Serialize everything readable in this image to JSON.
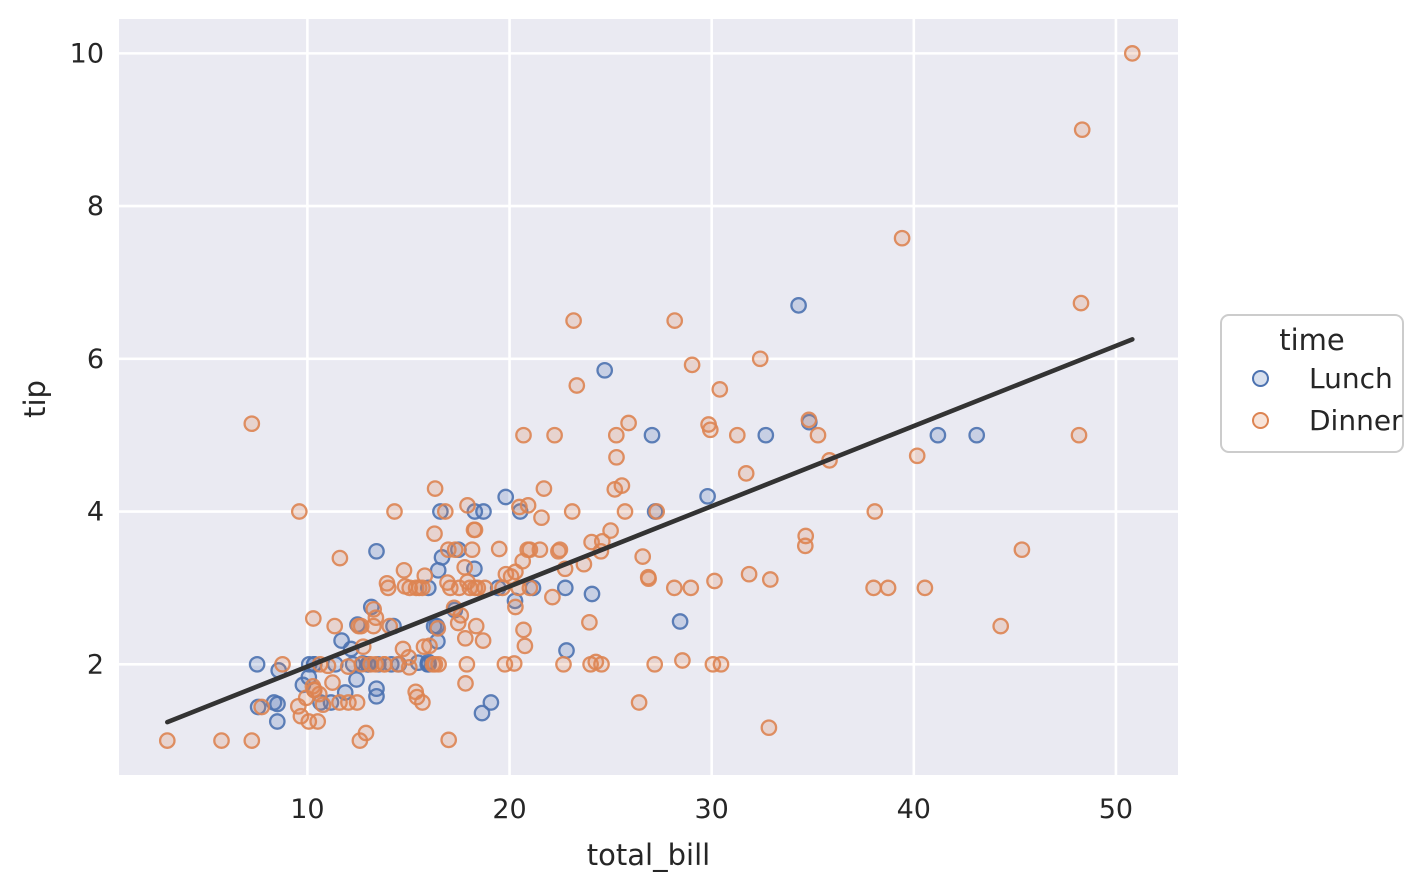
{
  "figure": {
    "background": "#ffffff",
    "axes_background": "#eaeaf2",
    "grid_color": "#ffffff",
    "text_color": "#262626"
  },
  "chart_data": {
    "type": "scatter",
    "title": "",
    "xlabel": "total_bill",
    "ylabel": "tip",
    "xlim": [
      0.68,
      53.07
    ],
    "ylim": [
      0.55,
      10.45
    ],
    "x_ticks": [
      10,
      20,
      30,
      40,
      50
    ],
    "y_ticks": [
      2,
      4,
      6,
      8,
      10
    ],
    "grid": true,
    "marker_style": "open-circle",
    "legend": {
      "title": "time",
      "position": "right",
      "entries": [
        {
          "label": "Lunch",
          "color": "#4c72b0"
        },
        {
          "label": "Dinner",
          "color": "#dd8452"
        }
      ]
    },
    "regression_line": {
      "color": "#333333",
      "slope": 0.105,
      "intercept": 0.92,
      "x_range": [
        3.07,
        50.81
      ]
    },
    "series": [
      {
        "name": "Lunch",
        "color": "#4c72b0",
        "points": [
          [
            27.2,
            4.0
          ],
          [
            22.76,
            3.0
          ],
          [
            17.29,
            2.71
          ],
          [
            19.44,
            3.0
          ],
          [
            16.66,
            3.4
          ],
          [
            10.07,
            1.83
          ],
          [
            32.68,
            5.0
          ],
          [
            15.98,
            2.03
          ],
          [
            34.83,
            5.17
          ],
          [
            13.03,
            2.0
          ],
          [
            18.28,
            4.0
          ],
          [
            24.71,
            5.85
          ],
          [
            21.16,
            3.0
          ],
          [
            10.65,
            1.5
          ],
          [
            12.43,
            1.8
          ],
          [
            24.08,
            2.92
          ],
          [
            11.69,
            2.31
          ],
          [
            13.42,
            1.68
          ],
          [
            14.26,
            2.5
          ],
          [
            15.95,
            2.0
          ],
          [
            12.48,
            2.52
          ],
          [
            29.8,
            4.2
          ],
          [
            8.52,
            1.48
          ],
          [
            14.52,
            2.0
          ],
          [
            11.38,
            2.0
          ],
          [
            22.82,
            2.18
          ],
          [
            19.08,
            1.5
          ],
          [
            20.27,
            2.83
          ],
          [
            11.17,
            1.5
          ],
          [
            12.26,
            2.0
          ],
          [
            18.26,
            3.25
          ],
          [
            8.51,
            1.25
          ],
          [
            10.33,
            2.0
          ],
          [
            14.15,
            2.0
          ],
          [
            16.0,
            2.0
          ],
          [
            13.16,
            2.75
          ],
          [
            17.47,
            3.5
          ],
          [
            34.3,
            6.7
          ],
          [
            41.19,
            5.0
          ],
          [
            27.05,
            5.0
          ],
          [
            16.43,
            2.3
          ],
          [
            8.35,
            1.5
          ],
          [
            18.64,
            1.36
          ],
          [
            11.87,
            1.63
          ],
          [
            9.78,
            1.73
          ],
          [
            7.51,
            2.0
          ],
          [
            19.81,
            4.19
          ],
          [
            28.44,
            2.56
          ],
          [
            15.48,
            2.02
          ],
          [
            16.58,
            4.0
          ],
          [
            7.56,
            1.44
          ],
          [
            10.34,
            2.0
          ],
          [
            43.11,
            5.0
          ],
          [
            13.0,
            2.0
          ],
          [
            13.51,
            2.0
          ],
          [
            18.71,
            4.0
          ],
          [
            12.74,
            2.01
          ],
          [
            13.0,
            2.0
          ],
          [
            16.4,
            2.5
          ],
          [
            20.53,
            4.0
          ],
          [
            16.47,
            3.23
          ],
          [
            12.16,
            2.2
          ],
          [
            13.42,
            3.48
          ],
          [
            8.58,
            1.92
          ],
          [
            15.98,
            3.0
          ],
          [
            13.42,
            1.58
          ],
          [
            16.27,
            2.5
          ],
          [
            10.09,
            2.0
          ]
        ]
      },
      {
        "name": "Dinner",
        "color": "#dd8452",
        "points": [
          [
            16.99,
            1.01
          ],
          [
            10.34,
            1.66
          ],
          [
            21.01,
            3.5
          ],
          [
            23.68,
            3.31
          ],
          [
            24.59,
            3.61
          ],
          [
            25.29,
            4.71
          ],
          [
            8.77,
            2.0
          ],
          [
            26.88,
            3.12
          ],
          [
            15.04,
            1.96
          ],
          [
            14.78,
            3.23
          ],
          [
            10.27,
            1.71
          ],
          [
            35.26,
            5.0
          ],
          [
            15.42,
            1.57
          ],
          [
            18.43,
            3.0
          ],
          [
            14.83,
            3.02
          ],
          [
            21.58,
            3.92
          ],
          [
            10.33,
            1.67
          ],
          [
            16.29,
            3.71
          ],
          [
            16.97,
            3.5
          ],
          [
            20.65,
            3.35
          ],
          [
            17.92,
            4.08
          ],
          [
            20.29,
            2.75
          ],
          [
            15.77,
            2.23
          ],
          [
            39.42,
            7.58
          ],
          [
            19.82,
            3.18
          ],
          [
            17.81,
            2.34
          ],
          [
            13.37,
            2.0
          ],
          [
            12.69,
            2.0
          ],
          [
            21.7,
            4.3
          ],
          [
            19.65,
            3.0
          ],
          [
            9.55,
            1.45
          ],
          [
            18.35,
            2.5
          ],
          [
            15.06,
            3.0
          ],
          [
            20.69,
            2.45
          ],
          [
            17.78,
            3.27
          ],
          [
            24.06,
            3.6
          ],
          [
            16.31,
            2.0
          ],
          [
            16.93,
            3.07
          ],
          [
            18.69,
            2.31
          ],
          [
            31.27,
            5.0
          ],
          [
            16.04,
            2.24
          ],
          [
            17.46,
            2.54
          ],
          [
            13.94,
            3.06
          ],
          [
            9.68,
            1.32
          ],
          [
            30.4,
            5.6
          ],
          [
            18.29,
            3.0
          ],
          [
            22.23,
            5.0
          ],
          [
            32.4,
            6.0
          ],
          [
            28.55,
            2.05
          ],
          [
            18.04,
            3.0
          ],
          [
            12.54,
            2.5
          ],
          [
            10.29,
            2.6
          ],
          [
            34.81,
            5.2
          ],
          [
            9.94,
            1.56
          ],
          [
            25.56,
            4.34
          ],
          [
            19.49,
            3.51
          ],
          [
            38.01,
            3.0
          ],
          [
            26.41,
            1.5
          ],
          [
            11.24,
            1.76
          ],
          [
            48.27,
            6.73
          ],
          [
            20.29,
            3.21
          ],
          [
            13.81,
            2.0
          ],
          [
            11.02,
            1.98
          ],
          [
            18.29,
            3.76
          ],
          [
            17.59,
            2.64
          ],
          [
            20.08,
            3.15
          ],
          [
            16.45,
            2.47
          ],
          [
            3.07,
            1.0
          ],
          [
            20.23,
            2.01
          ],
          [
            15.01,
            2.09
          ],
          [
            12.02,
            1.97
          ],
          [
            17.07,
            3.0
          ],
          [
            26.86,
            3.14
          ],
          [
            25.28,
            5.0
          ],
          [
            14.73,
            2.2
          ],
          [
            10.51,
            1.25
          ],
          [
            17.92,
            3.08
          ],
          [
            28.97,
            3.0
          ],
          [
            22.49,
            3.5
          ],
          [
            5.75,
            1.0
          ],
          [
            16.32,
            4.3
          ],
          [
            22.75,
            3.25
          ],
          [
            40.17,
            4.73
          ],
          [
            27.28,
            4.0
          ],
          [
            12.03,
            1.5
          ],
          [
            21.01,
            3.0
          ],
          [
            12.46,
            1.5
          ],
          [
            11.35,
            2.5
          ],
          [
            15.38,
            3.0
          ],
          [
            44.3,
            2.5
          ],
          [
            22.42,
            3.48
          ],
          [
            20.92,
            4.08
          ],
          [
            15.36,
            1.64
          ],
          [
            20.49,
            4.06
          ],
          [
            25.21,
            4.29
          ],
          [
            18.24,
            3.76
          ],
          [
            14.31,
            4.0
          ],
          [
            14.0,
            3.0
          ],
          [
            7.25,
            1.0
          ],
          [
            38.07,
            4.0
          ],
          [
            23.95,
            2.55
          ],
          [
            25.71,
            4.0
          ],
          [
            17.31,
            3.5
          ],
          [
            29.93,
            5.07
          ],
          [
            14.07,
            2.5
          ],
          [
            13.13,
            2.0
          ],
          [
            17.26,
            2.74
          ],
          [
            24.55,
            2.0
          ],
          [
            19.77,
            2.0
          ],
          [
            29.85,
            5.14
          ],
          [
            48.17,
            5.0
          ],
          [
            25.0,
            3.75
          ],
          [
            13.39,
            2.61
          ],
          [
            16.49,
            2.0
          ],
          [
            21.5,
            3.5
          ],
          [
            12.66,
            2.5
          ],
          [
            16.21,
            2.0
          ],
          [
            13.81,
            2.0
          ],
          [
            17.51,
            3.0
          ],
          [
            24.52,
            3.48
          ],
          [
            20.76,
            2.24
          ],
          [
            31.71,
            4.5
          ],
          [
            10.59,
            1.61
          ],
          [
            10.63,
            2.0
          ],
          [
            50.81,
            10.0
          ],
          [
            15.81,
            3.16
          ],
          [
            7.25,
            5.15
          ],
          [
            31.85,
            3.18
          ],
          [
            16.82,
            4.0
          ],
          [
            32.9,
            3.11
          ],
          [
            17.89,
            2.0
          ],
          [
            14.48,
            2.0
          ],
          [
            9.6,
            4.0
          ],
          [
            34.63,
            3.55
          ],
          [
            34.65,
            3.68
          ],
          [
            23.33,
            5.65
          ],
          [
            45.35,
            3.5
          ],
          [
            23.17,
            6.5
          ],
          [
            40.55,
            3.0
          ],
          [
            20.69,
            5.0
          ],
          [
            20.9,
            3.5
          ],
          [
            30.46,
            2.0
          ],
          [
            18.15,
            3.5
          ],
          [
            23.1,
            4.0
          ],
          [
            15.69,
            1.5
          ],
          [
            26.59,
            3.41
          ],
          [
            38.73,
            3.0
          ],
          [
            24.27,
            2.03
          ],
          [
            12.76,
            2.23
          ],
          [
            30.06,
            2.0
          ],
          [
            25.89,
            5.16
          ],
          [
            48.33,
            9.0
          ],
          [
            13.27,
            2.5
          ],
          [
            28.17,
            6.5
          ],
          [
            12.9,
            1.1
          ],
          [
            28.15,
            3.0
          ],
          [
            11.59,
            1.5
          ],
          [
            7.74,
            1.44
          ],
          [
            30.14,
            3.09
          ],
          [
            20.45,
            3.0
          ],
          [
            13.28,
            2.72
          ],
          [
            22.12,
            2.88
          ],
          [
            24.01,
            2.0
          ],
          [
            15.69,
            3.0
          ],
          [
            11.61,
            3.39
          ],
          [
            10.77,
            1.47
          ],
          [
            15.53,
            3.0
          ],
          [
            10.07,
            1.25
          ],
          [
            12.6,
            1.0
          ],
          [
            32.83,
            1.17
          ],
          [
            35.83,
            4.67
          ],
          [
            29.03,
            5.92
          ],
          [
            27.18,
            2.0
          ],
          [
            22.67,
            2.0
          ],
          [
            17.82,
            1.75
          ],
          [
            18.78,
            3.0
          ]
        ]
      }
    ]
  }
}
